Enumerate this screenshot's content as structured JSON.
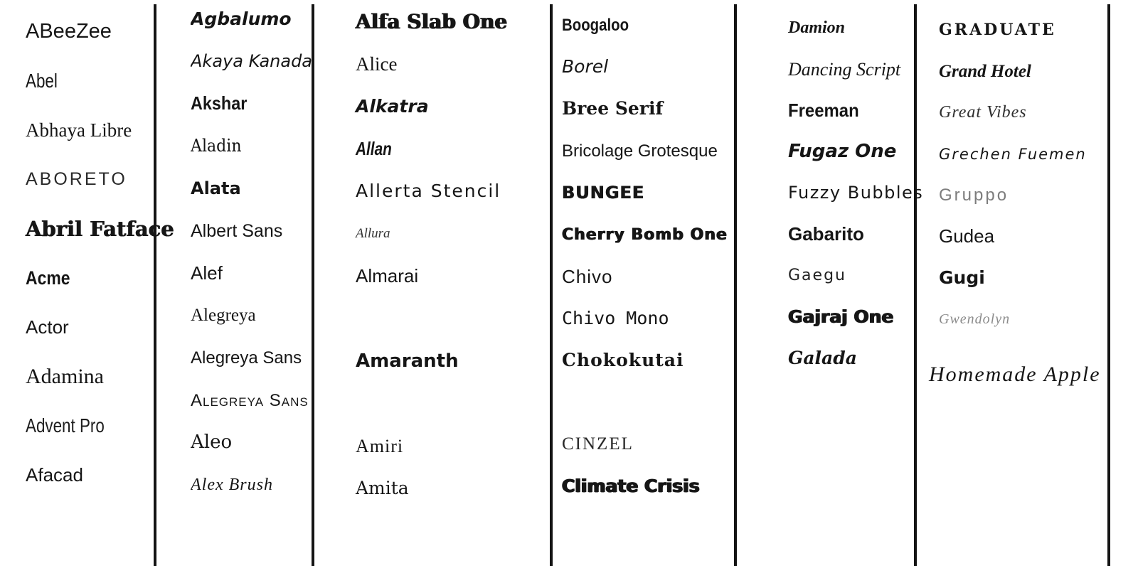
{
  "sheet": {
    "description_colors": {
      "background": "#ffffff",
      "ink": "#161616",
      "muted_gray": "#7d7d7d",
      "divider": "#141414"
    }
  },
  "columns": [
    {
      "items": [
        {
          "name": "ABeeZee",
          "style": "abeezee"
        },
        {
          "name": "Abel",
          "style": "abel"
        },
        {
          "name": "Abhaya Libre",
          "style": "abhaya-libre"
        },
        {
          "name": "ABORETO",
          "style": "aboreto"
        },
        {
          "name": "Abril Fatface",
          "style": "abril-fatface"
        },
        {
          "name": "Acme",
          "style": "acme"
        },
        {
          "name": "Actor",
          "style": "actor"
        },
        {
          "name": "Adamina",
          "style": "adamina"
        },
        {
          "name": "Advent Pro",
          "style": "advent-pro"
        },
        {
          "name": "Afacad",
          "style": "afacad"
        }
      ]
    },
    {
      "items": [
        {
          "name": "Agbalumo",
          "style": "agbalumo"
        },
        {
          "name": "Akaya Kanadaka",
          "style": "akaya-kanadaka"
        },
        {
          "name": "Akshar",
          "style": "akshar"
        },
        {
          "name": "Aladin",
          "style": "aladin"
        },
        {
          "name": "Alata",
          "style": "alata"
        },
        {
          "name": "Albert Sans",
          "style": "albert-sans"
        },
        {
          "name": "Alef",
          "style": "alef"
        },
        {
          "name": "Alegreya",
          "style": "alegreya"
        },
        {
          "name": "Alegreya Sans",
          "style": "alegreya-sans"
        },
        {
          "name": "Alegreya Sans SC",
          "style": "alegreya-sans-sc"
        },
        {
          "name": "Aleo",
          "style": "aleo"
        },
        {
          "name": "Alex Brush",
          "style": "alex-brush"
        }
      ]
    },
    {
      "items": [
        {
          "name": "Alfa Slab One",
          "style": "alfa-slab-one"
        },
        {
          "name": "Alice",
          "style": "alice"
        },
        {
          "name": "Alkatra",
          "style": "alkatra"
        },
        {
          "name": "Allan",
          "style": "allan"
        },
        {
          "name": "Allerta Stencil",
          "style": "allerta-stencil"
        },
        {
          "name": "Allura",
          "style": "allura"
        },
        {
          "name": "Almarai",
          "style": "almarai"
        },
        {
          "name": "",
          "style": ""
        },
        {
          "name": "Amaranth",
          "style": "amaranth"
        },
        {
          "name": "",
          "style": ""
        },
        {
          "name": "Amiri",
          "style": "amiri"
        },
        {
          "name": "Amita",
          "style": "amita"
        }
      ]
    },
    {
      "items": [
        {
          "name": "Boogaloo",
          "style": "boogaloo"
        },
        {
          "name": "Borel",
          "style": "borel"
        },
        {
          "name": "Bree Serif",
          "style": "bree-serif"
        },
        {
          "name": "Bricolage Grotesque",
          "style": "bricolage-grotesque"
        },
        {
          "name": "BUNGEE",
          "style": "bungee"
        },
        {
          "name": "Cherry Bomb One",
          "style": "cherry-bomb-one"
        },
        {
          "name": "Chivo",
          "style": "chivo"
        },
        {
          "name": "Chivo Mono",
          "style": "chivo-mono"
        },
        {
          "name": "Chokokutai",
          "style": "chokokutai"
        },
        {
          "name": "",
          "style": ""
        },
        {
          "name": "CINZEL",
          "style": "cinzel"
        },
        {
          "name": "Climate Crisis",
          "style": "climate-crisis"
        }
      ]
    },
    {
      "items": [
        {
          "name": "Damion",
          "style": "damion"
        },
        {
          "name": "Dancing Script",
          "style": "dancing-script"
        },
        {
          "name": "Freeman",
          "style": "freeman"
        },
        {
          "name": "Fugaz One",
          "style": "fugaz-one"
        },
        {
          "name": "Fuzzy Bubbles",
          "style": "fuzzy-bubbles"
        },
        {
          "name": "Gabarito",
          "style": "gabarito"
        },
        {
          "name": "Gaegu",
          "style": "gaegu"
        },
        {
          "name": "Gajraj One",
          "style": "gajraj-one"
        },
        {
          "name": "Galada",
          "style": "galada"
        }
      ]
    },
    {
      "items": [
        {
          "name": "GRADUATE",
          "style": "graduate"
        },
        {
          "name": "Grand Hotel",
          "style": "grand-hotel"
        },
        {
          "name": "Great Vibes",
          "style": "great-vibes"
        },
        {
          "name": "Grechen Fuemen",
          "style": "grechen-fuemen"
        },
        {
          "name": "Gruppo",
          "style": "gruppo"
        },
        {
          "name": "Gudea",
          "style": "gudea"
        },
        {
          "name": "Gugi",
          "style": "gugi"
        },
        {
          "name": "Gwendolyn",
          "style": "gwendolyn"
        },
        {
          "name": "Homemade Apple",
          "style": "homemade-apple"
        }
      ]
    }
  ]
}
